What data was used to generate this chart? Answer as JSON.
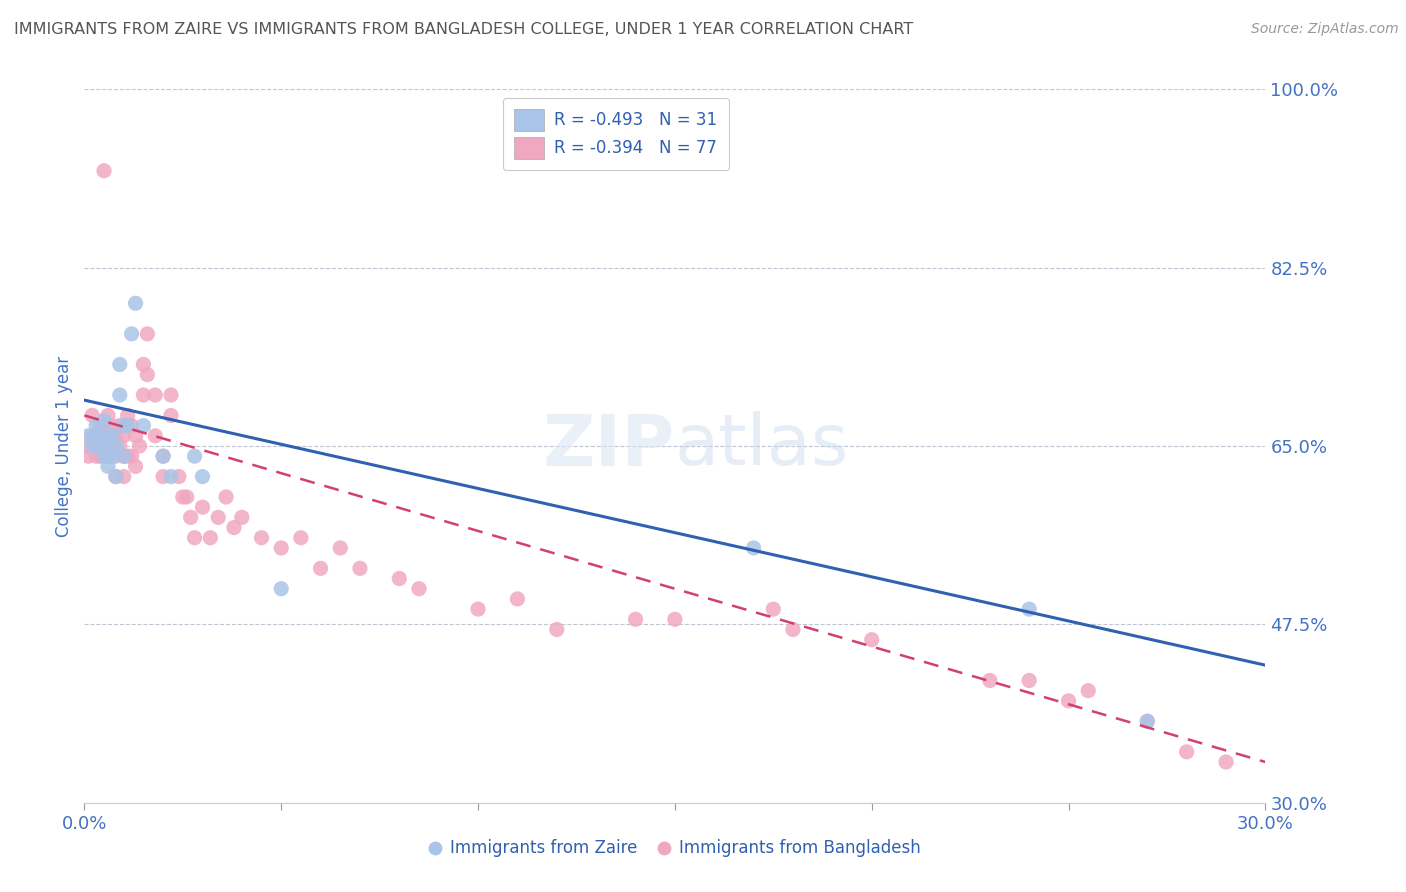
{
  "title": "IMMIGRANTS FROM ZAIRE VS IMMIGRANTS FROM BANGLADESH COLLEGE, UNDER 1 YEAR CORRELATION CHART",
  "source": "Source: ZipAtlas.com",
  "ylabel": "College, Under 1 year",
  "xlim": [
    0.0,
    0.3
  ],
  "ylim": [
    0.3,
    1.0
  ],
  "yticks": [
    0.3,
    0.475,
    0.65,
    0.825,
    1.0
  ],
  "ytick_labels": [
    "30.0%",
    "47.5%",
    "65.0%",
    "82.5%",
    "100.0%"
  ],
  "legend_labels": [
    "R = -0.493   N = 31",
    "R = -0.394   N = 77"
  ],
  "watermark_zip": "ZIP",
  "watermark_atlas": "atlas",
  "zaire_color": "#a8c4e8",
  "bangladesh_color": "#f0a8c0",
  "zaire_line_color": "#3060b0",
  "bangladesh_line_color": "#d04070",
  "title_color": "#555555",
  "axis_label_color": "#4472c4",
  "tick_color": "#4472c4",
  "grid_color": "#b0b8c8",
  "zaire_x": [
    0.001,
    0.002,
    0.003,
    0.003,
    0.004,
    0.004,
    0.005,
    0.005,
    0.006,
    0.006,
    0.006,
    0.007,
    0.007,
    0.008,
    0.008,
    0.009,
    0.009,
    0.01,
    0.01,
    0.011,
    0.012,
    0.013,
    0.015,
    0.02,
    0.022,
    0.028,
    0.03,
    0.05,
    0.17,
    0.24,
    0.27
  ],
  "zaire_y": [
    0.66,
    0.65,
    0.66,
    0.67,
    0.66,
    0.65,
    0.675,
    0.64,
    0.66,
    0.645,
    0.63,
    0.66,
    0.64,
    0.65,
    0.62,
    0.73,
    0.7,
    0.67,
    0.64,
    0.67,
    0.76,
    0.79,
    0.67,
    0.64,
    0.62,
    0.64,
    0.62,
    0.51,
    0.55,
    0.49,
    0.38
  ],
  "bangladesh_x": [
    0.001,
    0.001,
    0.002,
    0.002,
    0.003,
    0.003,
    0.004,
    0.004,
    0.004,
    0.005,
    0.005,
    0.005,
    0.006,
    0.006,
    0.006,
    0.007,
    0.007,
    0.008,
    0.008,
    0.008,
    0.009,
    0.009,
    0.01,
    0.01,
    0.01,
    0.011,
    0.011,
    0.012,
    0.012,
    0.013,
    0.013,
    0.014,
    0.015,
    0.015,
    0.016,
    0.016,
    0.018,
    0.018,
    0.02,
    0.02,
    0.022,
    0.022,
    0.024,
    0.025,
    0.026,
    0.027,
    0.028,
    0.03,
    0.032,
    0.034,
    0.036,
    0.038,
    0.04,
    0.045,
    0.05,
    0.055,
    0.06,
    0.065,
    0.07,
    0.08,
    0.085,
    0.1,
    0.11,
    0.12,
    0.14,
    0.15,
    0.175,
    0.18,
    0.2,
    0.23,
    0.24,
    0.25,
    0.255,
    0.27,
    0.28,
    0.29,
    0.005
  ],
  "bangladesh_y": [
    0.65,
    0.64,
    0.68,
    0.66,
    0.66,
    0.64,
    0.67,
    0.65,
    0.64,
    0.67,
    0.65,
    0.64,
    0.68,
    0.66,
    0.64,
    0.67,
    0.65,
    0.66,
    0.64,
    0.62,
    0.67,
    0.65,
    0.66,
    0.64,
    0.62,
    0.68,
    0.64,
    0.67,
    0.64,
    0.66,
    0.63,
    0.65,
    0.73,
    0.7,
    0.76,
    0.72,
    0.7,
    0.66,
    0.64,
    0.62,
    0.7,
    0.68,
    0.62,
    0.6,
    0.6,
    0.58,
    0.56,
    0.59,
    0.56,
    0.58,
    0.6,
    0.57,
    0.58,
    0.56,
    0.55,
    0.56,
    0.53,
    0.55,
    0.53,
    0.52,
    0.51,
    0.49,
    0.5,
    0.47,
    0.48,
    0.48,
    0.49,
    0.47,
    0.46,
    0.42,
    0.42,
    0.4,
    0.41,
    0.38,
    0.35,
    0.34,
    0.92
  ],
  "zaire_line": {
    "x0": 0.0,
    "y0": 0.695,
    "x1": 0.3,
    "y1": 0.435
  },
  "bangladesh_line": {
    "x0": 0.0,
    "y0": 0.68,
    "x1": 0.3,
    "y1": 0.34
  }
}
